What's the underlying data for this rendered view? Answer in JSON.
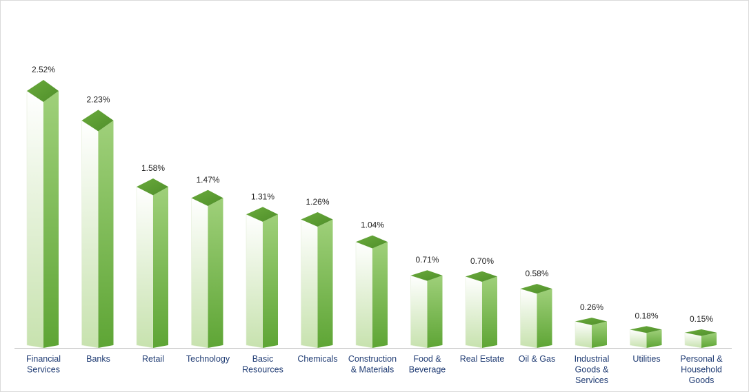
{
  "chart_data": {
    "type": "bar",
    "title": "",
    "xlabel": "",
    "ylabel": "",
    "ylim": [
      0,
      2.52
    ],
    "grid": false,
    "legend": "none",
    "value_suffix": "%",
    "categories": [
      [
        "Financial",
        "Services"
      ],
      [
        "Banks"
      ],
      [
        "Retail"
      ],
      [
        "Technology"
      ],
      [
        "Basic",
        "Resources"
      ],
      [
        "Chemicals"
      ],
      [
        "Construction",
        "& Materials"
      ],
      [
        "Food &",
        "Beverage"
      ],
      [
        "Real Estate"
      ],
      [
        "Oil & Gas"
      ],
      [
        "Industrial",
        "Goods &",
        "Services"
      ],
      [
        "Utilities"
      ],
      [
        "Personal &",
        "Household",
        "Goods"
      ]
    ],
    "values": [
      2.52,
      2.23,
      1.58,
      1.47,
      1.31,
      1.26,
      1.04,
      0.71,
      0.7,
      0.58,
      0.26,
      0.18,
      0.15
    ],
    "value_labels": [
      "2.52%",
      "2.23%",
      "1.58%",
      "1.47%",
      "1.31%",
      "1.26%",
      "1.04%",
      "0.71%",
      "0.70%",
      "0.58%",
      "0.26%",
      "0.18%",
      "0.15%"
    ],
    "colors": {
      "top_face": "#6aaa3c",
      "top_face_dark": "#4f8f2a",
      "front_light": "#ffffff",
      "front_dark": "#c7e2ae",
      "side_light": "#9fd07a",
      "side_dark": "#5ea535",
      "axis": "#bfbfbf",
      "value_text": "#1f1f1f",
      "category_text": "#1f3b73"
    }
  }
}
